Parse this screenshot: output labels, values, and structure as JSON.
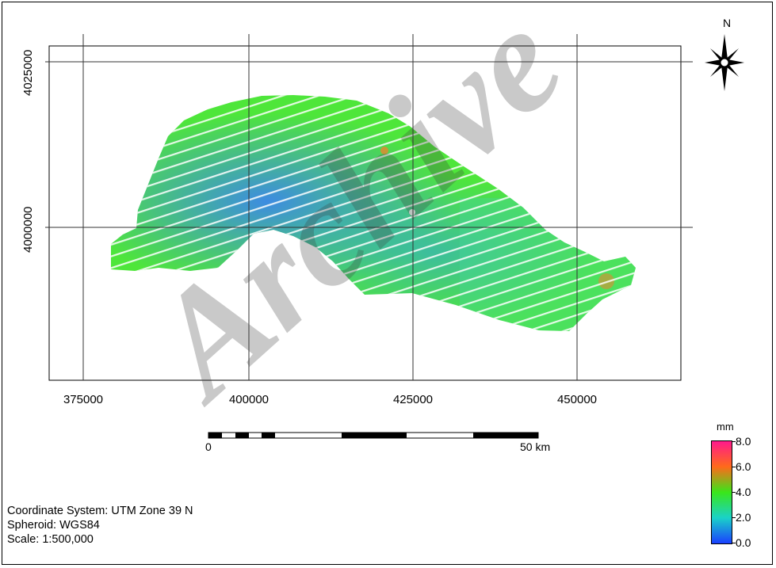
{
  "map": {
    "x_ticks": [
      "375000",
      "400000",
      "425000",
      "450000"
    ],
    "y_ticks": [
      "4025000",
      "4000000"
    ],
    "north_label": "N",
    "watermark": "Archive"
  },
  "scale_bar": {
    "start_label": "0",
    "end_label": "50 km"
  },
  "legend": {
    "unit": "mm",
    "ticks": [
      "8.0",
      "6.0",
      "4.0",
      "2.0",
      "0.0"
    ],
    "colors": [
      "#ff1a8c",
      "#ff6a1a",
      "#39e61a",
      "#1ad2c8",
      "#1a40ff"
    ],
    "value_range": [
      0.0,
      8.0
    ]
  },
  "info": {
    "coordinate_system": "Coordinate System: UTM Zone 39 N",
    "spheroid": "Spheroid: WGS84",
    "scale": "Scale: 1:500,000"
  }
}
